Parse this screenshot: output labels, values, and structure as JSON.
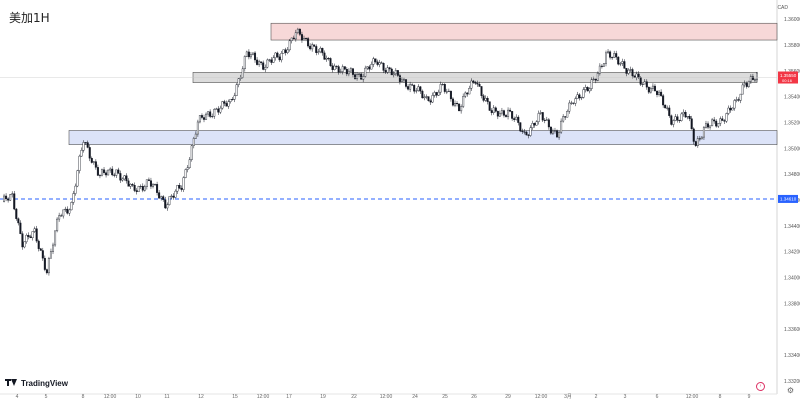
{
  "header": {
    "title": "美加1H",
    "currency": "CAD"
  },
  "brand": {
    "name": "TradingView"
  },
  "icons": {
    "settings": "gear-icon",
    "navigate": "arrow-circle-icon"
  },
  "colors": {
    "up": "#089981",
    "down": "#f23645",
    "wick": "#131722",
    "red_zone": "#f7d4d4",
    "gray_zone": "#d9d9d9",
    "blue_zone": "#d9e1f8",
    "dash": "#2962ff",
    "last_price": "#f23645"
  },
  "chart_data": {
    "type": "candlestick",
    "title": "美加1H",
    "currency": "CAD",
    "y_ticks": [
      "1.36000",
      "1.35800",
      "1.35600",
      "1.35400",
      "1.35200",
      "1.35000",
      "1.34800",
      "1.34600",
      "1.34400",
      "1.34200",
      "1.34000",
      "1.33800",
      "1.33600",
      "1.33400",
      "1.33200"
    ],
    "ylim": [
      1.331,
      1.3615
    ],
    "x_ticks": [
      "4",
      "5",
      "8",
      "12:00",
      "10",
      "11",
      "12",
      "15",
      "12:00",
      "17",
      "19",
      "22",
      "12:00",
      "24",
      "25",
      "26",
      "29",
      "12:00",
      "3月",
      "2",
      "3",
      "6",
      "12:00",
      "8",
      "9"
    ],
    "zones": [
      {
        "kind": "resistance",
        "top": 1.3597,
        "bottom": 1.3584
      },
      {
        "kind": "resistance",
        "top": 1.3559,
        "bottom": 1.3551
      },
      {
        "kind": "support",
        "top": 1.3514,
        "bottom": 1.3503
      }
    ],
    "horizontal_line": {
      "price": 1.3461,
      "label": "1.34610"
    },
    "last_price": {
      "price": 1.3555,
      "label": "1.35550",
      "countdown": "00:16"
    },
    "close_path": [
      {
        "i": 0,
        "price": 1.3459
      },
      {
        "i": 5,
        "price": 1.3462
      },
      {
        "i": 10,
        "price": 1.3428
      },
      {
        "i": 16,
        "price": 1.3434
      },
      {
        "i": 22,
        "price": 1.3406
      },
      {
        "i": 28,
        "price": 1.3448
      },
      {
        "i": 34,
        "price": 1.3457
      },
      {
        "i": 40,
        "price": 1.3506
      },
      {
        "i": 48,
        "price": 1.3479
      },
      {
        "i": 56,
        "price": 1.3483
      },
      {
        "i": 64,
        "price": 1.3468
      },
      {
        "i": 72,
        "price": 1.3474
      },
      {
        "i": 80,
        "price": 1.3458
      },
      {
        "i": 88,
        "price": 1.347
      },
      {
        "i": 96,
        "price": 1.352
      },
      {
        "i": 104,
        "price": 1.353
      },
      {
        "i": 112,
        "price": 1.3535
      },
      {
        "i": 120,
        "price": 1.3573
      },
      {
        "i": 128,
        "price": 1.3565
      },
      {
        "i": 136,
        "price": 1.3571
      },
      {
        "i": 144,
        "price": 1.3589
      },
      {
        "i": 152,
        "price": 1.358
      },
      {
        "i": 160,
        "price": 1.3567
      },
      {
        "i": 168,
        "price": 1.3559
      },
      {
        "i": 176,
        "price": 1.3557
      },
      {
        "i": 184,
        "price": 1.3568
      },
      {
        "i": 192,
        "price": 1.3557
      },
      {
        "i": 200,
        "price": 1.3549
      },
      {
        "i": 208,
        "price": 1.3538
      },
      {
        "i": 216,
        "price": 1.3547
      },
      {
        "i": 224,
        "price": 1.3532
      },
      {
        "i": 232,
        "price": 1.3554
      },
      {
        "i": 240,
        "price": 1.3527
      },
      {
        "i": 248,
        "price": 1.3529
      },
      {
        "i": 256,
        "price": 1.3511
      },
      {
        "i": 264,
        "price": 1.3525
      },
      {
        "i": 272,
        "price": 1.3511
      },
      {
        "i": 280,
        "price": 1.3539
      },
      {
        "i": 288,
        "price": 1.3546
      },
      {
        "i": 296,
        "price": 1.3573
      },
      {
        "i": 304,
        "price": 1.3566
      },
      {
        "i": 312,
        "price": 1.3552
      },
      {
        "i": 320,
        "price": 1.3546
      },
      {
        "i": 328,
        "price": 1.3523
      },
      {
        "i": 336,
        "price": 1.3525
      },
      {
        "i": 340,
        "price": 1.3504
      },
      {
        "i": 344,
        "price": 1.3515
      },
      {
        "i": 352,
        "price": 1.3522
      },
      {
        "i": 360,
        "price": 1.3535
      },
      {
        "i": 364,
        "price": 1.3552
      },
      {
        "i": 370,
        "price": 1.3555
      }
    ]
  }
}
